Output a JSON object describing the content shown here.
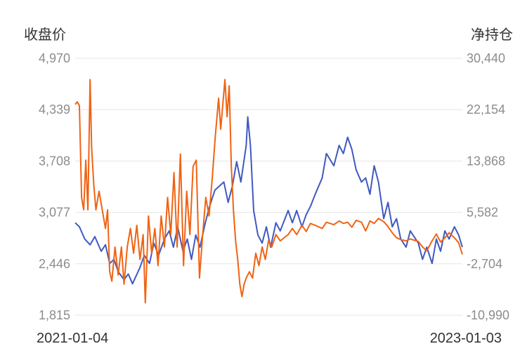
{
  "chart_data": {
    "type": "line",
    "left_axis_title": "收盘价",
    "right_axis_title": "净持仓",
    "left_ticks": [
      "4,970",
      "4,339",
      "3,708",
      "3,077",
      "2,446",
      "1,815"
    ],
    "right_ticks": [
      "30,440",
      "22,154",
      "13,868",
      "5,582",
      "-2,704",
      "-10,990"
    ],
    "ylim_left": [
      1815,
      4970
    ],
    "ylim_right": [
      -10990,
      30440
    ],
    "x_start_label": "2021-01-04",
    "x_end_label": "2023-01-03",
    "grid": true,
    "legend": "none",
    "series": [
      {
        "axis": "left",
        "color": "#4059c0",
        "points": [
          [
            "2021-01-04",
            2950
          ],
          [
            "2021-01-12",
            2900
          ],
          [
            "2021-01-22",
            2750
          ],
          [
            "2021-02-01",
            2680
          ],
          [
            "2021-02-10",
            2780
          ],
          [
            "2021-02-22",
            2600
          ],
          [
            "2021-03-02",
            2680
          ],
          [
            "2021-03-10",
            2450
          ],
          [
            "2021-03-18",
            2500
          ],
          [
            "2021-03-26",
            2350
          ],
          [
            "2021-04-06",
            2250
          ],
          [
            "2021-04-14",
            2320
          ],
          [
            "2021-04-22",
            2200
          ],
          [
            "2021-05-06",
            2400
          ],
          [
            "2021-05-14",
            2550
          ],
          [
            "2021-05-24",
            2450
          ],
          [
            "2021-06-01",
            2700
          ],
          [
            "2021-06-10",
            2550
          ],
          [
            "2021-06-21",
            2750
          ],
          [
            "2021-06-30",
            2850
          ],
          [
            "2021-07-08",
            2650
          ],
          [
            "2021-07-16",
            2900
          ],
          [
            "2021-07-26",
            2600
          ],
          [
            "2021-08-03",
            2750
          ],
          [
            "2021-08-11",
            2500
          ],
          [
            "2021-08-19",
            2800
          ],
          [
            "2021-08-27",
            2650
          ],
          [
            "2021-09-06",
            2950
          ],
          [
            "2021-09-14",
            3150
          ],
          [
            "2021-09-24",
            3350
          ],
          [
            "2021-10-11",
            3450
          ],
          [
            "2021-10-19",
            3200
          ],
          [
            "2021-10-27",
            3400
          ],
          [
            "2021-11-04",
            3700
          ],
          [
            "2021-11-12",
            3450
          ],
          [
            "2021-11-22",
            3900
          ],
          [
            "2021-11-25",
            4250
          ],
          [
            "2021-11-30",
            3900
          ],
          [
            "2021-12-06",
            3100
          ],
          [
            "2021-12-14",
            2800
          ],
          [
            "2021-12-22",
            2700
          ],
          [
            "2021-12-30",
            2900
          ],
          [
            "2022-01-07",
            2650
          ],
          [
            "2022-01-17",
            2950
          ],
          [
            "2022-01-25",
            2850
          ],
          [
            "2022-02-09",
            3100
          ],
          [
            "2022-02-17",
            2950
          ],
          [
            "2022-02-25",
            3100
          ],
          [
            "2022-03-07",
            2900
          ],
          [
            "2022-03-15",
            3050
          ],
          [
            "2022-03-23",
            3150
          ],
          [
            "2022-04-01",
            3300
          ],
          [
            "2022-04-14",
            3500
          ],
          [
            "2022-04-22",
            3800
          ],
          [
            "2022-05-06",
            3650
          ],
          [
            "2022-05-16",
            3900
          ],
          [
            "2022-05-24",
            3800
          ],
          [
            "2022-06-01",
            4000
          ],
          [
            "2022-06-09",
            3850
          ],
          [
            "2022-06-17",
            3600
          ],
          [
            "2022-06-27",
            3450
          ],
          [
            "2022-07-05",
            3500
          ],
          [
            "2022-07-13",
            3300
          ],
          [
            "2022-07-21",
            3650
          ],
          [
            "2022-07-29",
            3450
          ],
          [
            "2022-08-08",
            3000
          ],
          [
            "2022-08-16",
            3200
          ],
          [
            "2022-08-24",
            2900
          ],
          [
            "2022-09-01",
            3000
          ],
          [
            "2022-09-09",
            2750
          ],
          [
            "2022-09-19",
            2650
          ],
          [
            "2022-09-27",
            2850
          ],
          [
            "2022-10-12",
            2700
          ],
          [
            "2022-10-20",
            2500
          ],
          [
            "2022-10-28",
            2650
          ],
          [
            "2022-11-07",
            2450
          ],
          [
            "2022-11-15",
            2750
          ],
          [
            "2022-11-23",
            2600
          ],
          [
            "2022-12-01",
            2850
          ],
          [
            "2022-12-09",
            2750
          ],
          [
            "2022-12-19",
            2900
          ],
          [
            "2022-12-27",
            2800
          ],
          [
            "2023-01-03",
            2650
          ]
        ]
      },
      {
        "axis": "right",
        "color": "#f06313",
        "points": [
          [
            "2021-01-04",
            23000
          ],
          [
            "2021-01-08",
            23400
          ],
          [
            "2021-01-12",
            22800
          ],
          [
            "2021-01-16",
            8000
          ],
          [
            "2021-01-20",
            6000
          ],
          [
            "2021-01-24",
            14000
          ],
          [
            "2021-01-28",
            6000
          ],
          [
            "2021-02-01",
            27000
          ],
          [
            "2021-02-04",
            16000
          ],
          [
            "2021-02-08",
            10000
          ],
          [
            "2021-02-12",
            6000
          ],
          [
            "2021-02-18",
            9000
          ],
          [
            "2021-02-24",
            6000
          ],
          [
            "2021-03-02",
            3000
          ],
          [
            "2021-03-06",
            6000
          ],
          [
            "2021-03-10",
            -4000
          ],
          [
            "2021-03-14",
            -5500
          ],
          [
            "2021-03-20",
            0
          ],
          [
            "2021-03-26",
            -4500
          ],
          [
            "2021-04-01",
            0
          ],
          [
            "2021-04-06",
            -6000
          ],
          [
            "2021-04-12",
            0
          ],
          [
            "2021-04-18",
            3000
          ],
          [
            "2021-04-24",
            -1000
          ],
          [
            "2021-04-30",
            3500
          ],
          [
            "2021-05-06",
            -2000
          ],
          [
            "2021-05-12",
            2000
          ],
          [
            "2021-05-16",
            -9000
          ],
          [
            "2021-05-22",
            5000
          ],
          [
            "2021-05-28",
            -1000
          ],
          [
            "2021-06-03",
            3000
          ],
          [
            "2021-06-09",
            -3000
          ],
          [
            "2021-06-15",
            5000
          ],
          [
            "2021-06-21",
            0
          ],
          [
            "2021-06-27",
            8000
          ],
          [
            "2021-07-03",
            2000
          ],
          [
            "2021-07-09",
            12000
          ],
          [
            "2021-07-15",
            0
          ],
          [
            "2021-07-21",
            15000
          ],
          [
            "2021-07-27",
            -3000
          ],
          [
            "2021-08-02",
            9000
          ],
          [
            "2021-08-08",
            2000
          ],
          [
            "2021-08-14",
            13000
          ],
          [
            "2021-08-20",
            14000
          ],
          [
            "2021-08-26",
            -5000
          ],
          [
            "2021-09-01",
            2000
          ],
          [
            "2021-09-07",
            8000
          ],
          [
            "2021-09-13",
            5000
          ],
          [
            "2021-09-19",
            11000
          ],
          [
            "2021-09-25",
            18000
          ],
          [
            "2021-10-01",
            24000
          ],
          [
            "2021-10-05",
            19000
          ],
          [
            "2021-10-09",
            23000
          ],
          [
            "2021-10-13",
            27000
          ],
          [
            "2021-10-17",
            21000
          ],
          [
            "2021-10-21",
            26000
          ],
          [
            "2021-10-25",
            13000
          ],
          [
            "2021-10-29",
            6000
          ],
          [
            "2021-11-02",
            1000
          ],
          [
            "2021-11-06",
            -2000
          ],
          [
            "2021-11-10",
            -6000
          ],
          [
            "2021-11-14",
            -8000
          ],
          [
            "2021-11-18",
            -6000
          ],
          [
            "2021-11-22",
            -5000
          ],
          [
            "2021-11-28",
            -4000
          ],
          [
            "2021-12-04",
            -5000
          ],
          [
            "2021-12-10",
            -1000
          ],
          [
            "2021-12-16",
            -3000
          ],
          [
            "2021-12-22",
            0
          ],
          [
            "2021-12-28",
            -2000
          ],
          [
            "2022-01-03",
            1000
          ],
          [
            "2022-01-09",
            0
          ],
          [
            "2022-01-17",
            2000
          ],
          [
            "2022-01-25",
            1000
          ],
          [
            "2022-02-09",
            2000
          ],
          [
            "2022-02-17",
            3000
          ],
          [
            "2022-02-25",
            2000
          ],
          [
            "2022-03-07",
            3500
          ],
          [
            "2022-03-15",
            2500
          ],
          [
            "2022-03-23",
            3800
          ],
          [
            "2022-04-01",
            3500
          ],
          [
            "2022-04-14",
            3000
          ],
          [
            "2022-04-22",
            4000
          ],
          [
            "2022-05-06",
            3600
          ],
          [
            "2022-05-16",
            4200
          ],
          [
            "2022-05-24",
            3800
          ],
          [
            "2022-06-01",
            4000
          ],
          [
            "2022-06-09",
            3200
          ],
          [
            "2022-06-17",
            4300
          ],
          [
            "2022-06-27",
            4000
          ],
          [
            "2022-07-05",
            2600
          ],
          [
            "2022-07-13",
            4200
          ],
          [
            "2022-07-21",
            3800
          ],
          [
            "2022-07-29",
            4600
          ],
          [
            "2022-08-08",
            4100
          ],
          [
            "2022-08-16",
            3300
          ],
          [
            "2022-08-24",
            2300
          ],
          [
            "2022-09-01",
            1500
          ],
          [
            "2022-09-09",
            1200
          ],
          [
            "2022-09-19",
            1000
          ],
          [
            "2022-09-27",
            1300
          ],
          [
            "2022-10-12",
            900
          ],
          [
            "2022-10-20",
            0
          ],
          [
            "2022-10-28",
            -600
          ],
          [
            "2022-11-07",
            1000
          ],
          [
            "2022-11-15",
            2100
          ],
          [
            "2022-11-23",
            800
          ],
          [
            "2022-12-01",
            1500
          ],
          [
            "2022-12-09",
            2300
          ],
          [
            "2022-12-19",
            1500
          ],
          [
            "2022-12-27",
            700
          ],
          [
            "2023-01-03",
            -1200
          ]
        ]
      }
    ]
  }
}
